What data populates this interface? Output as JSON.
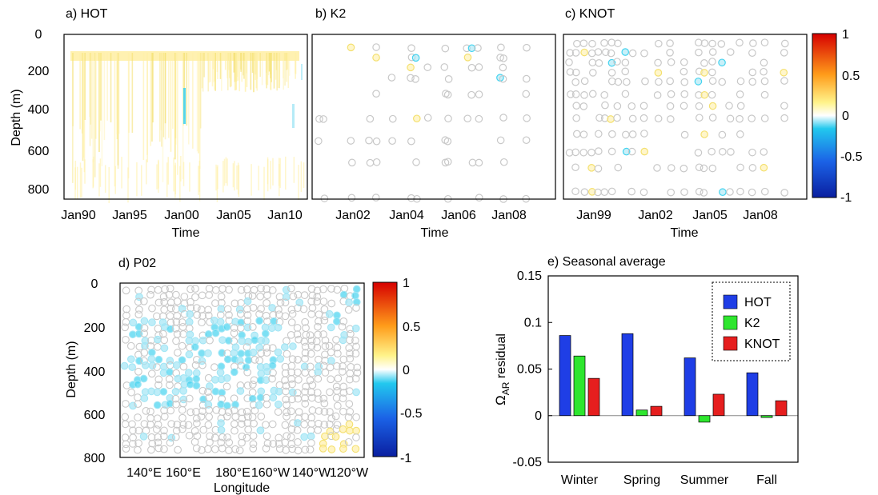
{
  "colorbar": {
    "colors": [
      "#0a1fa0",
      "#1b62e6",
      "#22c8ee",
      "#ffffff",
      "#fff38a",
      "#ff9c1a",
      "#d60000"
    ],
    "ticks": [
      "1",
      "0.5",
      "0",
      "-0.5",
      "-1"
    ],
    "values": [
      1,
      0.5,
      0,
      -0.5,
      -1
    ]
  },
  "chart_data": [
    {
      "type": "heatmap",
      "title": "a) HOT",
      "xlabel": "Time",
      "ylabel": "Depth (m)",
      "xticks": [
        "Jan90",
        "Jan95",
        "Jan00",
        "Jan05",
        "Jan10"
      ],
      "yticks": [
        "0",
        "200",
        "400",
        "600",
        "800"
      ],
      "ylim": [
        0,
        850
      ],
      "yreversed": true
    },
    {
      "type": "scatter",
      "title": "b) K2",
      "xlabel": "Time",
      "ylabel": "",
      "xticks": [
        "Jan02",
        "Jan04",
        "Jan06",
        "Jan08"
      ],
      "ylim": [
        0,
        850
      ],
      "yreversed": true
    },
    {
      "type": "scatter",
      "title": "c) KNOT",
      "xlabel": "Time",
      "ylabel": "",
      "xticks": [
        "Jan99",
        "Jan02",
        "Jan05",
        "Jan08"
      ],
      "ylim": [
        0,
        850
      ],
      "yreversed": true
    },
    {
      "type": "scatter",
      "title": "d) P02",
      "xlabel": "Longitude",
      "ylabel": "Depth (m)",
      "xticks": [
        "140°E",
        "160°E",
        "180°E",
        "160°W",
        "140°W",
        "120°W"
      ],
      "yticks": [
        "0",
        "200",
        "400",
        "600",
        "800"
      ],
      "ylim": [
        0,
        800
      ],
      "yreversed": true
    },
    {
      "type": "bar",
      "title": "e) Seasonal average",
      "categories": [
        "Winter",
        "Spring",
        "Summer",
        "Fall"
      ],
      "ylabel_main": "Ω",
      "ylabel_sub": "AR",
      "ylabel_rest": " residual",
      "ylim": [
        -0.05,
        0.15
      ],
      "yticks": [
        "0.15",
        "0.1",
        "0.05",
        "0",
        "-0.05"
      ],
      "ytick_values": [
        0.15,
        0.1,
        0.05,
        0,
        -0.05
      ],
      "legend_position": "top-right",
      "series": [
        {
          "name": "HOT",
          "color": "#1f3ee6",
          "values": [
            0.086,
            0.088,
            0.062,
            0.046
          ]
        },
        {
          "name": "K2",
          "color": "#2ee62e",
          "values": [
            0.064,
            0.006,
            -0.007,
            -0.002
          ]
        },
        {
          "name": "KNOT",
          "color": "#e61e1e",
          "values": [
            0.04,
            0.01,
            0.023,
            0.016
          ]
        }
      ]
    }
  ]
}
